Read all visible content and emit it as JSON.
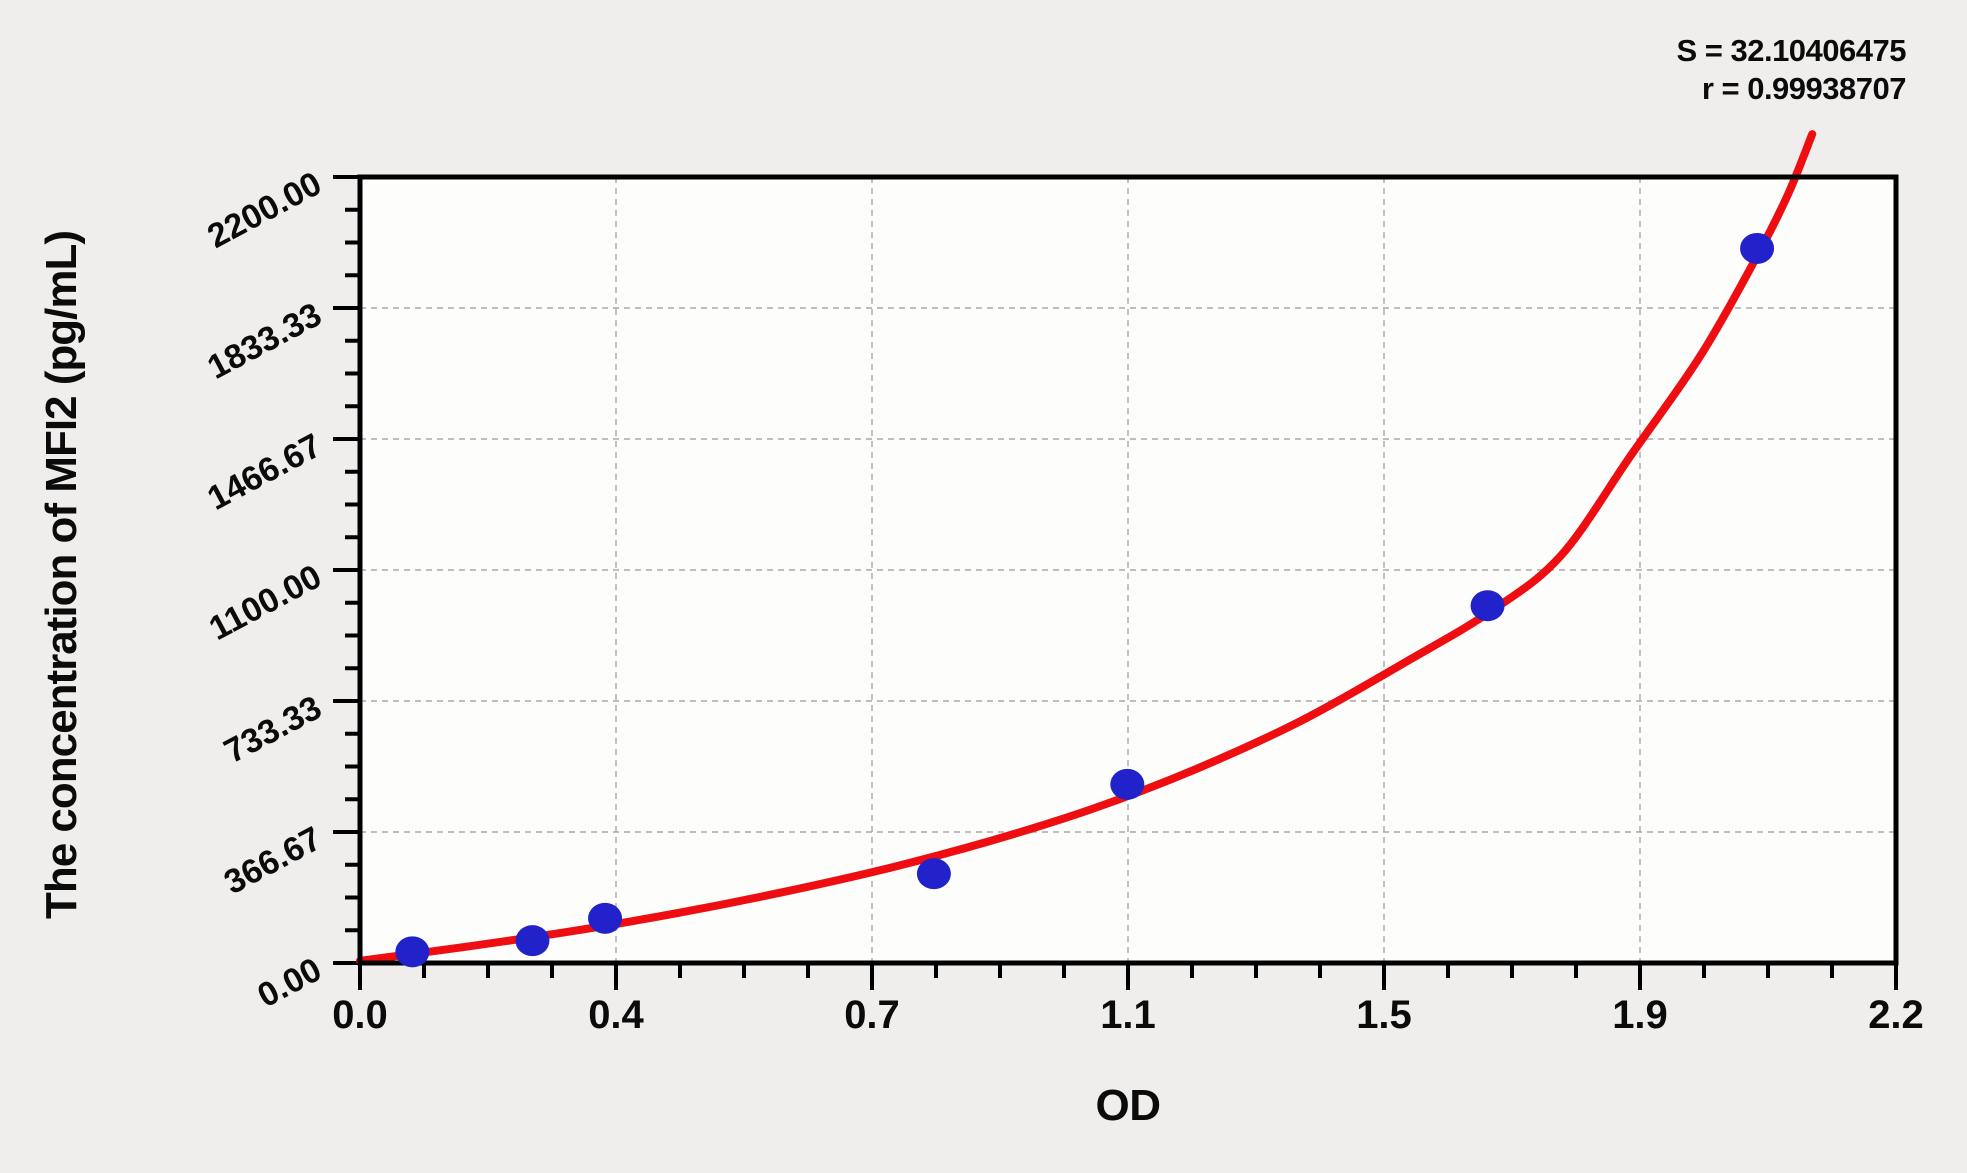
{
  "page": {
    "background_color": "#efeeec",
    "plot_background_color": "#fdfdfc"
  },
  "stats": {
    "s_line": "S = 32.10406475",
    "r_line": "r = 0.99938707"
  },
  "chart_data": {
    "type": "scatter",
    "title": "",
    "xlabel": "OD",
    "ylabel": "The concentration of MFI2 (pg/mL)",
    "xlim": [
      0,
      2.2
    ],
    "ylim": [
      0,
      2200
    ],
    "x_tick_labels": [
      "0.0",
      "0.4",
      "0.7",
      "1.1",
      "1.5",
      "1.9",
      "2.2"
    ],
    "y_tick_labels": [
      "0.00",
      "366.67",
      "733.33",
      "1100.00",
      "1466.67",
      "1833.33",
      "2200.00"
    ],
    "minor_ticks_per_division": 3,
    "grid": "dashed gray lines at interior major ticks, both axes",
    "legend_position": "none",
    "fit_parameters": {
      "S": 32.10406475,
      "r": 0.99938707
    },
    "series": [
      {
        "name": "standard-points",
        "type": "scatter",
        "marker": "filled-circle",
        "color": "#2222cb",
        "points": [
          {
            "od": 0.075,
            "concentration_pg_ml": 31.25
          },
          {
            "od": 0.247,
            "concentration_pg_ml": 62.5
          },
          {
            "od": 0.351,
            "concentration_pg_ml": 125
          },
          {
            "od": 0.822,
            "concentration_pg_ml": 250
          },
          {
            "od": 1.099,
            "concentration_pg_ml": 500
          },
          {
            "od": 1.615,
            "concentration_pg_ml": 1000
          },
          {
            "od": 2.001,
            "concentration_pg_ml": 2000
          }
        ]
      },
      {
        "name": "fitted-curve",
        "type": "line",
        "color": "#ee0e11",
        "points": [
          [
            0.0,
            6
          ],
          [
            0.15,
            45
          ],
          [
            0.3,
            88
          ],
          [
            0.45,
            138
          ],
          [
            0.6,
            196
          ],
          [
            0.75,
            262
          ],
          [
            0.9,
            340
          ],
          [
            1.05,
            432
          ],
          [
            1.2,
            545
          ],
          [
            1.35,
            680
          ],
          [
            1.5,
            845
          ],
          [
            1.62,
            985
          ],
          [
            1.72,
            1140
          ],
          [
            1.82,
            1420
          ],
          [
            1.92,
            1700
          ],
          [
            2.0,
            1975
          ],
          [
            2.045,
            2150
          ],
          [
            2.08,
            2320
          ]
        ]
      }
    ],
    "colors": {
      "point": "#2222cb",
      "curve": "#ee0e11",
      "grid": "#a9a9a9",
      "frame": "#000000",
      "text": "#0b0b0b"
    }
  }
}
